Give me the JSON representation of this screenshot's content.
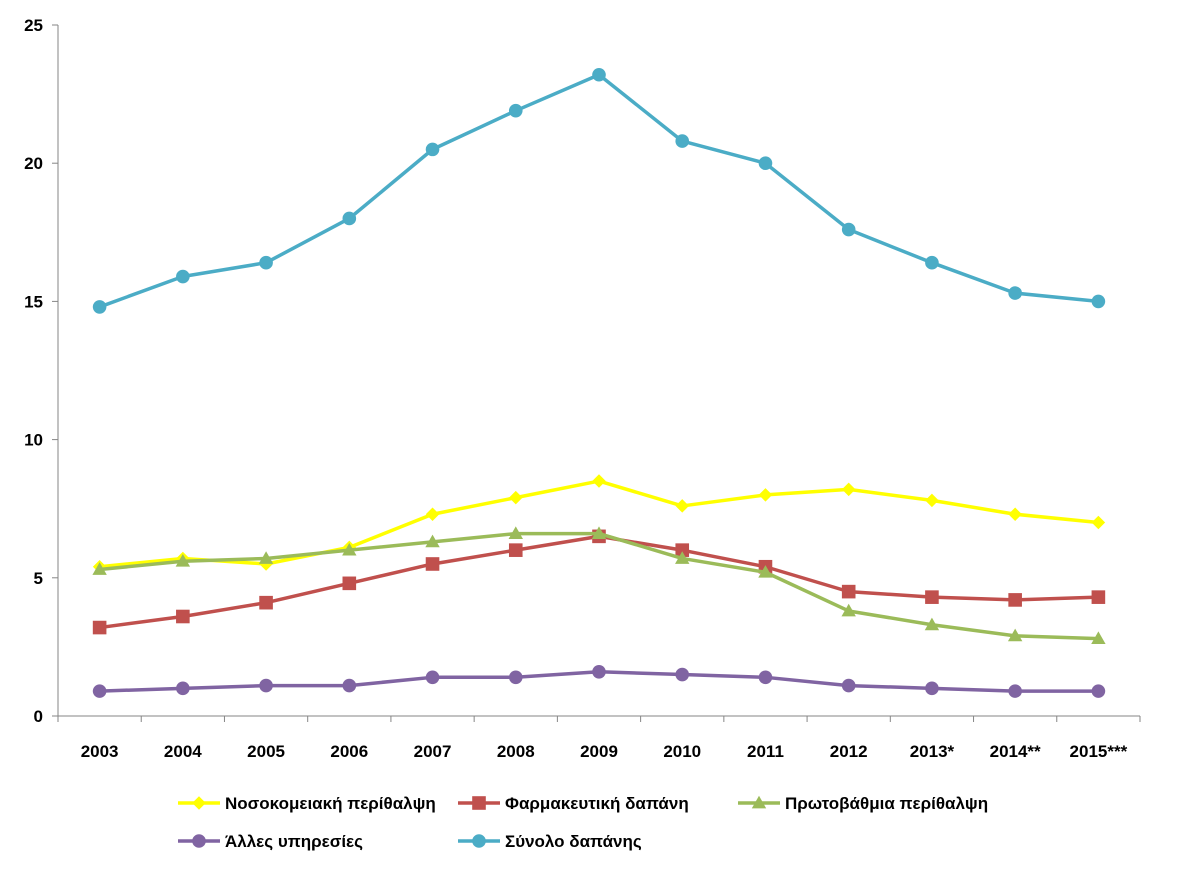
{
  "chart_data": {
    "type": "line",
    "title": "",
    "xlabel": "",
    "ylabel": "",
    "ylim": [
      0,
      25
    ],
    "yticks": [
      "0",
      "5",
      "10",
      "15",
      "20",
      "25"
    ],
    "grid": false,
    "legend_position": "bottom",
    "categories": [
      "2003",
      "2004",
      "2005",
      "2006",
      "2007",
      "2008",
      "2009",
      "2010",
      "2011",
      "2012",
      "2013*",
      "2014**",
      "2015***"
    ],
    "series": [
      {
        "name": "Νοσοκομειακή περίθαλψη",
        "color": "#FFFF00",
        "marker": "diamond",
        "values": [
          5.4,
          5.7,
          5.5,
          6.1,
          7.3,
          7.9,
          8.5,
          7.6,
          8.0,
          8.2,
          7.8,
          7.3,
          7.0
        ]
      },
      {
        "name": "Φαρμακευτική δαπάνη",
        "color": "#C0504D",
        "marker": "square",
        "values": [
          3.2,
          3.6,
          4.1,
          4.8,
          5.5,
          6.0,
          6.5,
          6.0,
          5.4,
          4.5,
          4.3,
          4.2,
          4.3
        ]
      },
      {
        "name": "Πρωτοβάθμια περίθαλψη",
        "color": "#9BBB59",
        "marker": "triangle",
        "values": [
          5.3,
          5.6,
          5.7,
          6.0,
          6.3,
          6.6,
          6.6,
          5.7,
          5.2,
          3.8,
          3.3,
          2.9,
          2.8
        ]
      },
      {
        "name": "Άλλες υπηρεσίες",
        "color": "#8064A2",
        "marker": "circle",
        "values": [
          0.9,
          1.0,
          1.1,
          1.1,
          1.4,
          1.4,
          1.6,
          1.5,
          1.4,
          1.1,
          1.0,
          0.9,
          0.9
        ]
      },
      {
        "name": "Σύνολο δαπάνης",
        "color": "#4BACC6",
        "marker": "circle",
        "values": [
          14.8,
          15.9,
          16.4,
          18.0,
          20.5,
          21.9,
          23.2,
          20.8,
          20.0,
          17.6,
          16.4,
          15.3,
          15.0
        ]
      }
    ]
  }
}
